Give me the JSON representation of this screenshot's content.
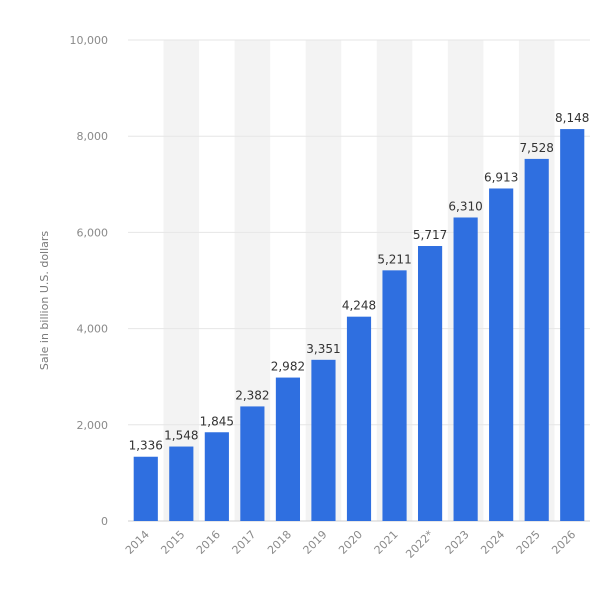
{
  "chart_data": {
    "type": "bar",
    "categories": [
      "2014",
      "2015",
      "2016",
      "2017",
      "2018",
      "2019",
      "2020",
      "2021",
      "2022*",
      "2023",
      "2024",
      "2025",
      "2026"
    ],
    "values": [
      1336,
      1548,
      1845,
      2382,
      2982,
      3351,
      4248,
      5211,
      5717,
      6310,
      6913,
      7528,
      8148
    ],
    "data_labels": [
      "1,336",
      "1,548",
      "1,845",
      "2,382",
      "2,982",
      "3,351",
      "4,248",
      "5,211",
      "5,717",
      "6,310",
      "6,913",
      "7,528",
      "8,148"
    ],
    "ylabel": "Sale in billion U.S. dollars",
    "ylim": [
      0,
      10000
    ],
    "yticks": [
      0,
      2000,
      4000,
      6000,
      8000,
      10000
    ],
    "ytick_labels": [
      "0",
      "2,000",
      "4,000",
      "6,000",
      "8,000",
      "10,000"
    ],
    "grid": true,
    "bar_color": "#2f6fe0",
    "band_color": "#f3f3f3"
  }
}
